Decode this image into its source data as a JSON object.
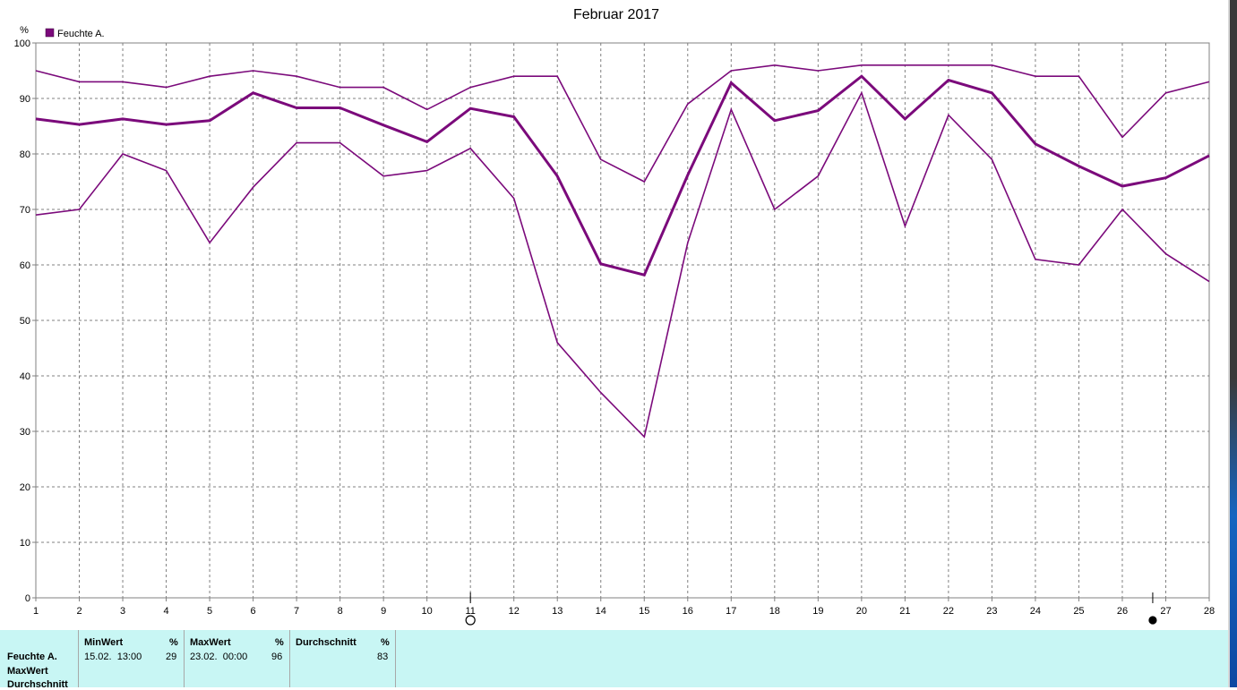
{
  "chart_data": {
    "type": "line",
    "title": "Februar 2017",
    "ylabel": "%",
    "xlabel": "",
    "x": [
      1,
      2,
      3,
      4,
      5,
      6,
      7,
      8,
      9,
      10,
      11,
      12,
      13,
      14,
      15,
      16,
      17,
      18,
      19,
      20,
      21,
      22,
      23,
      24,
      25,
      26,
      27,
      28
    ],
    "ylim": [
      0,
      100
    ],
    "yticks": [
      0,
      10,
      20,
      30,
      40,
      50,
      60,
      70,
      80,
      90,
      100
    ],
    "grid": true,
    "legend": "top-left",
    "legend_entries": [
      "Feuchte A."
    ],
    "color": "#7b0a7b",
    "series": [
      {
        "name": "MaxWert",
        "values": [
          95,
          93,
          93,
          92,
          94,
          95,
          94,
          92,
          92,
          88,
          92,
          94,
          94,
          79,
          75,
          89,
          95,
          96,
          95,
          96,
          96,
          96,
          96,
          94,
          94,
          83,
          91,
          93
        ]
      },
      {
        "name": "Durchschnitt",
        "values": [
          86.3,
          85.3,
          86.3,
          85.3,
          86,
          91,
          88.3,
          88.3,
          85.2,
          82.2,
          88.2,
          86.7,
          76,
          60.2,
          58.2,
          76.2,
          92.8,
          86,
          87.8,
          94,
          86.3,
          93.3,
          91,
          81.8,
          77.8,
          74.2,
          75.7,
          79.7
        ]
      },
      {
        "name": "MinWert",
        "values": [
          69,
          70,
          80,
          77,
          64,
          74,
          82,
          82,
          76,
          77,
          81,
          72,
          46,
          37,
          29,
          64,
          88,
          70,
          76,
          91,
          67,
          87,
          79,
          61,
          60,
          70,
          62,
          57
        ]
      }
    ],
    "markers": [
      {
        "x": 11,
        "style": "open-circle"
      },
      {
        "x": 26.7,
        "style": "filled-circle"
      }
    ]
  },
  "summary": {
    "row_labels": [
      "Feuchte A.",
      "MaxWert",
      "Durchschnitt"
    ],
    "columns": [
      {
        "header": "MinWert",
        "unit": "%",
        "date": "15.02.  13:00",
        "value": "29"
      },
      {
        "header": "MaxWert",
        "unit": "%",
        "date": "23.02.  00:00",
        "value": "96"
      },
      {
        "header": "Durchschnitt",
        "unit": "%",
        "date": "",
        "value": "83"
      }
    ]
  }
}
